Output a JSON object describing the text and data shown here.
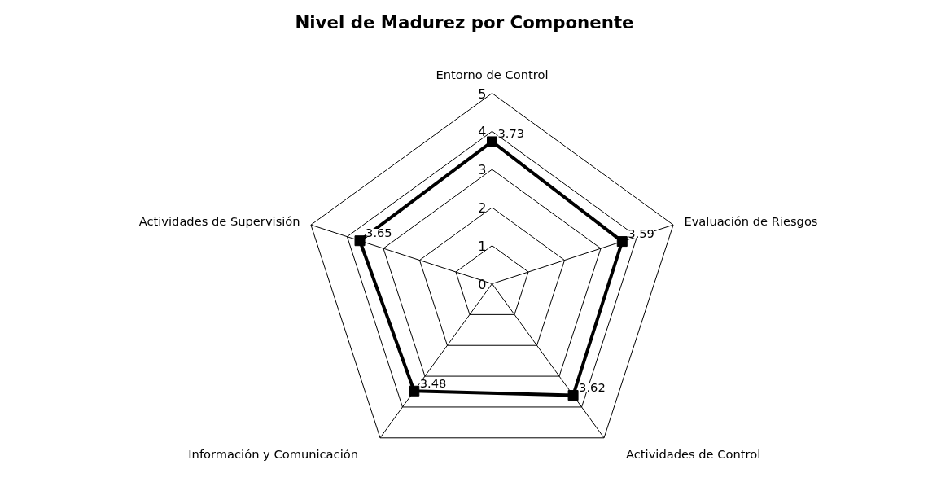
{
  "chart_data": {
    "type": "radar",
    "title": "Nivel de Madurez por Componente",
    "categories": [
      "Entorno de Control",
      "Evaluación de Riesgos",
      "Actividades de Control",
      "Información y Comunicación",
      "Actividades de Supervisión"
    ],
    "series": [
      {
        "color": "#000000",
        "values": [
          3.73,
          3.59,
          3.62,
          3.48,
          3.65
        ]
      }
    ],
    "ylim": [
      0,
      5
    ],
    "yticks": [
      0,
      1,
      2,
      3,
      4,
      5
    ],
    "grid": true,
    "marker": "square",
    "line_style": "solid",
    "data_labels": true
  }
}
